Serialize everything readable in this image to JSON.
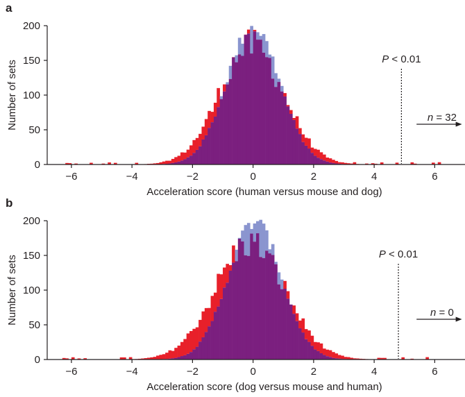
{
  "colors": {
    "series_1": "#e8202a",
    "series_2": "#8a95cf",
    "overlap": "#7b1f7f",
    "axis": "#231f20"
  },
  "chart_data": [
    {
      "type": "bar",
      "panel_label": "a",
      "xlabel": "Acceleration score (human versus mouse and dog)",
      "ylabel": "Number of sets",
      "xlim": [
        -6.8,
        7.0
      ],
      "ylim": [
        0,
        200
      ],
      "x_ticks": [
        -6,
        -4,
        -2,
        0,
        2,
        4,
        6
      ],
      "y_ticks": [
        0,
        50,
        100,
        150,
        200
      ],
      "grid": false,
      "bin_width": 0.1,
      "series": [
        {
          "color": "#e8202a",
          "mean": -0.05,
          "sd": 1.05,
          "peak": 172
        },
        {
          "color": "#8a95cf",
          "mean": 0.0,
          "sd": 0.88,
          "peak": 198
        }
      ],
      "threshold": {
        "x": 4.9,
        "label_prefix": "P",
        "label_rest": " < 0.01"
      },
      "tail_note": {
        "prefix": "n",
        "rest": " = 32"
      }
    },
    {
      "type": "bar",
      "panel_label": "b",
      "xlabel": "Acceleration score (dog versus mouse and human)",
      "ylabel": "Number of sets",
      "xlim": [
        -6.8,
        7.0
      ],
      "ylim": [
        0,
        200
      ],
      "x_ticks": [
        -6,
        -4,
        -2,
        0,
        2,
        4,
        6
      ],
      "y_ticks": [
        0,
        50,
        100,
        150,
        200
      ],
      "grid": false,
      "bin_width": 0.1,
      "series": [
        {
          "color": "#e8202a",
          "mean": -0.1,
          "sd": 1.15,
          "peak": 168
        },
        {
          "color": "#8a95cf",
          "mean": 0.05,
          "sd": 0.88,
          "peak": 198
        }
      ],
      "threshold": {
        "x": 4.8,
        "label_prefix": "P",
        "label_rest": " < 0.01"
      },
      "tail_note": {
        "prefix": "n",
        "rest": " = 0"
      }
    }
  ]
}
